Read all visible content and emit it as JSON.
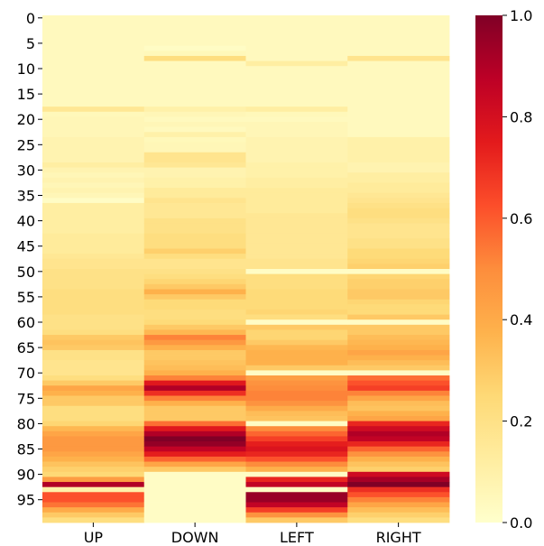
{
  "chart_data": {
    "type": "heatmap",
    "title": "",
    "xlabel": "",
    "ylabel": "",
    "columns": [
      "UP",
      "DOWN",
      "LEFT",
      "RIGHT"
    ],
    "row_count": 100,
    "y_tick_labels": [
      "0",
      "5",
      "10",
      "15",
      "20",
      "25",
      "30",
      "35",
      "40",
      "45",
      "50",
      "55",
      "60",
      "65",
      "70",
      "75",
      "80",
      "85",
      "90",
      "95"
    ],
    "y_tick_rows": [
      0,
      5,
      10,
      15,
      20,
      25,
      30,
      35,
      40,
      45,
      50,
      55,
      60,
      65,
      70,
      75,
      80,
      85,
      90,
      95
    ],
    "colorbar": {
      "min": 0.0,
      "max": 1.0,
      "tick_labels": [
        "0.0",
        "0.2",
        "0.4",
        "0.6",
        "0.8",
        "1.0"
      ],
      "tick_values": [
        0.0,
        0.2,
        0.4,
        0.6,
        0.8,
        1.0
      ],
      "colormap": "YlOrRd"
    },
    "series": [
      {
        "name": "UP",
        "values": [
          0.04,
          0.04,
          0.04,
          0.04,
          0.04,
          0.04,
          0.04,
          0.04,
          0.04,
          0.04,
          0.04,
          0.04,
          0.04,
          0.04,
          0.04,
          0.04,
          0.04,
          0.04,
          0.16,
          0.05,
          0.06,
          0.06,
          0.06,
          0.06,
          0.08,
          0.08,
          0.08,
          0.08,
          0.08,
          0.12,
          0.08,
          0.06,
          0.08,
          0.06,
          0.08,
          0.06,
          0.02,
          0.12,
          0.12,
          0.12,
          0.12,
          0.12,
          0.12,
          0.14,
          0.14,
          0.14,
          0.14,
          0.16,
          0.18,
          0.18,
          0.2,
          0.2,
          0.2,
          0.2,
          0.22,
          0.22,
          0.22,
          0.22,
          0.22,
          0.2,
          0.2,
          0.2,
          0.22,
          0.3,
          0.32,
          0.3,
          0.2,
          0.2,
          0.18,
          0.18,
          0.18,
          0.22,
          0.3,
          0.42,
          0.38,
          0.3,
          0.3,
          0.22,
          0.22,
          0.22,
          0.26,
          0.36,
          0.42,
          0.46,
          0.46,
          0.46,
          0.42,
          0.38,
          0.32,
          0.28,
          0.25,
          0.45,
          0.9,
          0.1,
          0.62,
          0.62,
          0.55,
          0.4,
          0.3,
          0.22
        ]
      },
      {
        "name": "DOWN",
        "values": [
          0.04,
          0.04,
          0.04,
          0.04,
          0.04,
          0.04,
          0.02,
          0.05,
          0.22,
          0.04,
          0.04,
          0.04,
          0.04,
          0.04,
          0.04,
          0.04,
          0.04,
          0.04,
          0.1,
          0.06,
          0.04,
          0.06,
          0.04,
          0.1,
          0.05,
          0.06,
          0.06,
          0.18,
          0.18,
          0.16,
          0.08,
          0.08,
          0.1,
          0.1,
          0.14,
          0.14,
          0.18,
          0.16,
          0.16,
          0.16,
          0.2,
          0.2,
          0.2,
          0.22,
          0.22,
          0.22,
          0.28,
          0.22,
          0.18,
          0.18,
          0.2,
          0.22,
          0.26,
          0.3,
          0.38,
          0.3,
          0.24,
          0.24,
          0.22,
          0.22,
          0.24,
          0.3,
          0.36,
          0.52,
          0.46,
          0.38,
          0.3,
          0.3,
          0.32,
          0.34,
          0.38,
          0.52,
          0.76,
          0.9,
          0.7,
          0.52,
          0.38,
          0.3,
          0.3,
          0.3,
          0.56,
          0.76,
          0.9,
          1.0,
          0.96,
          0.86,
          0.74,
          0.58,
          0.42,
          0.3,
          0.02,
          0.02,
          0.02,
          0.02,
          0.02,
          0.02,
          0.02,
          0.02,
          0.02,
          0.02
        ]
      },
      {
        "name": "LEFT",
        "values": [
          0.04,
          0.04,
          0.04,
          0.04,
          0.04,
          0.04,
          0.04,
          0.04,
          0.04,
          0.12,
          0.04,
          0.04,
          0.04,
          0.04,
          0.04,
          0.04,
          0.04,
          0.04,
          0.12,
          0.05,
          0.04,
          0.06,
          0.06,
          0.06,
          0.08,
          0.08,
          0.08,
          0.08,
          0.08,
          0.1,
          0.1,
          0.1,
          0.12,
          0.12,
          0.14,
          0.14,
          0.14,
          0.14,
          0.14,
          0.16,
          0.16,
          0.16,
          0.16,
          0.16,
          0.16,
          0.16,
          0.16,
          0.16,
          0.18,
          0.18,
          0.02,
          0.22,
          0.22,
          0.22,
          0.24,
          0.24,
          0.24,
          0.24,
          0.26,
          0.22,
          0.02,
          0.3,
          0.26,
          0.26,
          0.3,
          0.36,
          0.38,
          0.38,
          0.38,
          0.3,
          0.02,
          0.44,
          0.48,
          0.5,
          0.52,
          0.52,
          0.48,
          0.4,
          0.34,
          0.32,
          0.02,
          0.5,
          0.58,
          0.66,
          0.74,
          0.78,
          0.72,
          0.62,
          0.5,
          0.38,
          0.02,
          0.72,
          0.86,
          0.02,
          0.95,
          0.95,
          0.86,
          0.66,
          0.48,
          0.3
        ]
      },
      {
        "name": "RIGHT",
        "values": [
          0.04,
          0.04,
          0.04,
          0.04,
          0.04,
          0.04,
          0.04,
          0.04,
          0.18,
          0.04,
          0.04,
          0.04,
          0.04,
          0.04,
          0.04,
          0.04,
          0.04,
          0.04,
          0.04,
          0.04,
          0.04,
          0.04,
          0.04,
          0.04,
          0.1,
          0.1,
          0.1,
          0.1,
          0.1,
          0.08,
          0.08,
          0.12,
          0.12,
          0.14,
          0.14,
          0.16,
          0.18,
          0.2,
          0.22,
          0.22,
          0.2,
          0.18,
          0.18,
          0.18,
          0.2,
          0.2,
          0.24,
          0.24,
          0.26,
          0.28,
          0.02,
          0.26,
          0.28,
          0.28,
          0.3,
          0.3,
          0.26,
          0.24,
          0.24,
          0.3,
          0.02,
          0.3,
          0.3,
          0.34,
          0.36,
          0.38,
          0.42,
          0.38,
          0.34,
          0.3,
          0.02,
          0.56,
          0.62,
          0.66,
          0.52,
          0.42,
          0.34,
          0.32,
          0.38,
          0.42,
          0.72,
          0.82,
          0.9,
          0.86,
          0.72,
          0.58,
          0.48,
          0.38,
          0.32,
          0.28,
          0.82,
          0.92,
          1.0,
          0.7,
          0.62,
          0.52,
          0.42,
          0.34,
          0.28,
          0.22
        ]
      }
    ]
  }
}
